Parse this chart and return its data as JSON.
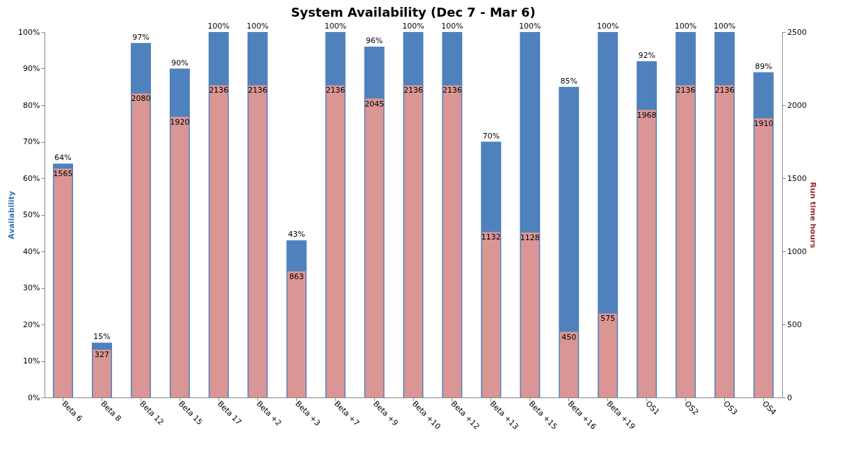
{
  "chart_data": {
    "type": "bar",
    "title": "System Availability (Dec 7 - Mar 6)",
    "ylabel": "Availability",
    "y2label": "Run time hours",
    "categories": [
      "Beta 6",
      "Beta 8",
      "Beta 12",
      "Beta 15",
      "Beta 17",
      "Beta +2",
      "Beta +3",
      "Beta +7",
      "Beta +9",
      "Beta +10",
      "Beta +12",
      "Beta +13",
      "Beta +15",
      "Beta +16",
      "Beta +19",
      "OS1",
      "OS2",
      "OS3",
      "OS4"
    ],
    "series": [
      {
        "color": "#4f81bd",
        "values": [
          64,
          15,
          97,
          90,
          100,
          100,
          43,
          100,
          96,
          100,
          100,
          70,
          100,
          85,
          100,
          92,
          100,
          100,
          89
        ],
        "value_labels": [
          "64%",
          "15%",
          "97%",
          "90%",
          "100%",
          "100%",
          "43%",
          "100%",
          "96%",
          "100%",
          "100%",
          "70%",
          "100%",
          "85%",
          "100%",
          "92%",
          "100%",
          "100%",
          "89%"
        ]
      },
      {
        "color": "#d99694",
        "axis": "y2",
        "values": [
          1565,
          327,
          2080,
          1920,
          2136,
          2136,
          863,
          2136,
          2045,
          2136,
          2136,
          1132,
          1128,
          450,
          575,
          1968,
          2136,
          2136,
          1910
        ],
        "value_labels": [
          "1565",
          "327",
          "2080",
          "1920",
          "2136",
          "2136",
          "863",
          "2136",
          "2045",
          "2136",
          "2136",
          "1132",
          "1128",
          "450",
          "575",
          "1968",
          "2136",
          "2136",
          "1910"
        ]
      }
    ],
    "ylim": [
      0,
      100
    ],
    "yticks": [
      {
        "value": 0,
        "label": "0%"
      },
      {
        "value": 10,
        "label": "10%"
      },
      {
        "value": 20,
        "label": "20%"
      },
      {
        "value": 30,
        "label": "30%"
      },
      {
        "value": 40,
        "label": "40%"
      },
      {
        "value": 50,
        "label": "50%"
      },
      {
        "value": 60,
        "label": "60%"
      },
      {
        "value": 70,
        "label": "70%"
      },
      {
        "value": 80,
        "label": "80%"
      },
      {
        "value": 90,
        "label": "90%"
      },
      {
        "value": 100,
        "label": "100%"
      }
    ],
    "y2lim": [
      0,
      2500
    ],
    "y2ticks": [
      0,
      500,
      1000,
      1500,
      2000,
      2500
    ]
  }
}
